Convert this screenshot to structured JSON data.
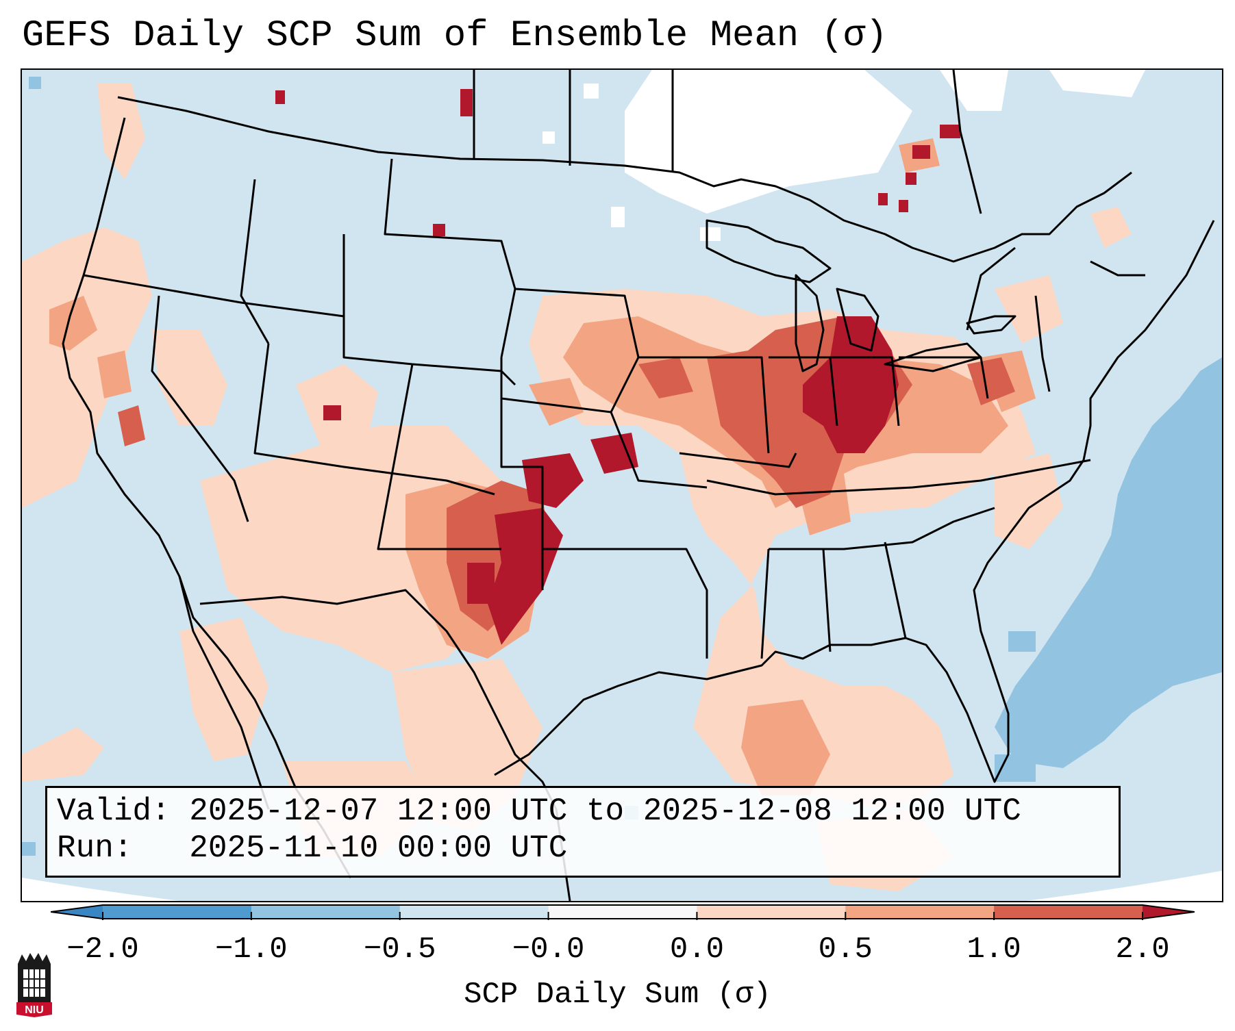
{
  "title": "GEFS Daily SCP Sum of Ensemble Mean (σ)",
  "info": {
    "valid_label": "Valid:",
    "valid_value": "2025-12-07 12:00 UTC to 2025-12-08 12:00 UTC",
    "run_label": "Run:",
    "run_value": "2025-11-10 00:00 UTC"
  },
  "colorbar": {
    "label": "SCP Daily Sum (σ)",
    "ticks": [
      "−2.0",
      "−1.0",
      "−0.5",
      "−0.0",
      "0.0",
      "0.5",
      "1.0",
      "2.0"
    ],
    "bins": [
      {
        "name": "-2.0 to -1.0",
        "color": "#4f9bcf"
      },
      {
        "name": "-1.0 to -0.5",
        "color": "#92c3e0"
      },
      {
        "name": "-0.5 to -0.0",
        "color": "#d1e5f0"
      },
      {
        "name": "-0.0 to 0.0",
        "color": "#f7f7f7"
      },
      {
        "name": "0.0 to 0.5",
        "color": "#fbd7c4"
      },
      {
        "name": "0.5 to 1.0",
        "color": "#f2a483"
      },
      {
        "name": "1.0 to 2.0",
        "color": "#d6604d"
      }
    ],
    "extend_low_color": "#3a86c3",
    "extend_high_color": "#b2182b"
  },
  "colors": {
    "background_neutral": "#d1e5f0",
    "positive_light": "#fbd7c4",
    "positive_mid": "#f2a483",
    "positive_high": "#d6604d",
    "positive_max": "#b2182b",
    "negative_mid": "#92c3e0"
  },
  "logo": {
    "text": "NIU",
    "icon": "university-tower-icon"
  }
}
